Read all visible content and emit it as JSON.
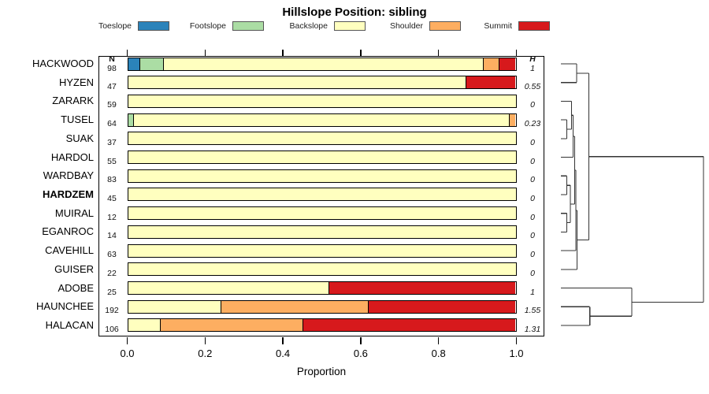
{
  "title": "Hillslope Position: sibling",
  "columns": {
    "n": "N",
    "h": "H"
  },
  "xaxis": {
    "label": "Proportion",
    "tick_labels": [
      "0.0",
      "0.2",
      "0.4",
      "0.6",
      "0.8",
      "1.0"
    ],
    "tick_values": [
      0,
      0.2,
      0.4,
      0.6,
      0.8,
      1.0
    ]
  },
  "legend": [
    {
      "label": "Toeslope",
      "color": "#2b83ba"
    },
    {
      "label": "Footslope",
      "color": "#abdda4"
    },
    {
      "label": "Backslope",
      "color": "#ffffbf"
    },
    {
      "label": "Shoulder",
      "color": "#fdae61"
    },
    {
      "label": "Summit",
      "color": "#d7191c"
    }
  ],
  "chart_data": {
    "type": "bar",
    "subtype": "horizontal-stacked-proportion",
    "title": "Hillslope Position: sibling",
    "xlabel": "Proportion",
    "xlim": [
      0,
      1
    ],
    "grid": false,
    "legend_position": "top",
    "categories": [
      "Toeslope",
      "Footslope",
      "Backslope",
      "Shoulder",
      "Summit"
    ],
    "colors": [
      "#2b83ba",
      "#abdda4",
      "#ffffbf",
      "#fdae61",
      "#d7191c"
    ],
    "rows": [
      {
        "name": "HACKWOOD",
        "n": 98,
        "h": "1",
        "bold": false,
        "values": [
          0.031,
          0.061,
          0.826,
          0.041,
          0.041
        ]
      },
      {
        "name": "HYZEN",
        "n": 47,
        "h": "0.55",
        "bold": false,
        "values": [
          0,
          0,
          0.872,
          0,
          0.128
        ]
      },
      {
        "name": "ZARARK",
        "n": 59,
        "h": "0",
        "bold": false,
        "values": [
          0,
          0,
          1,
          0,
          0
        ]
      },
      {
        "name": "TUSEL",
        "n": 64,
        "h": "0.23",
        "bold": false,
        "values": [
          0,
          0.016,
          0.968,
          0.016,
          0
        ]
      },
      {
        "name": "SUAK",
        "n": 37,
        "h": "0",
        "bold": false,
        "values": [
          0,
          0,
          1,
          0,
          0
        ]
      },
      {
        "name": "HARDOL",
        "n": 55,
        "h": "0",
        "bold": false,
        "values": [
          0,
          0,
          1,
          0,
          0
        ]
      },
      {
        "name": "WARDBAY",
        "n": 83,
        "h": "0",
        "bold": false,
        "values": [
          0,
          0,
          1,
          0,
          0
        ]
      },
      {
        "name": "HARDZEM",
        "n": 45,
        "h": "0",
        "bold": true,
        "values": [
          0,
          0,
          1,
          0,
          0
        ]
      },
      {
        "name": "MUIRAL",
        "n": 12,
        "h": "0",
        "bold": false,
        "values": [
          0,
          0,
          1,
          0,
          0
        ]
      },
      {
        "name": "EGANROC",
        "n": 14,
        "h": "0",
        "bold": false,
        "values": [
          0,
          0,
          1,
          0,
          0
        ]
      },
      {
        "name": "CAVEHILL",
        "n": 63,
        "h": "0",
        "bold": false,
        "values": [
          0,
          0,
          1,
          0,
          0
        ]
      },
      {
        "name": "GUISER",
        "n": 22,
        "h": "0",
        "bold": false,
        "values": [
          0,
          0,
          1,
          0,
          0
        ]
      },
      {
        "name": "ADOBE",
        "n": 25,
        "h": "1",
        "bold": false,
        "values": [
          0,
          0,
          0.52,
          0,
          0.48
        ]
      },
      {
        "name": "HAUNCHEE",
        "n": 192,
        "h": "1.55",
        "bold": false,
        "values": [
          0,
          0,
          0.24,
          0.38,
          0.38
        ]
      },
      {
        "name": "HALACAN",
        "n": 106,
        "h": "1.31",
        "bold": false,
        "values": [
          0,
          0,
          0.085,
          0.368,
          0.547
        ]
      }
    ],
    "dendrogram_segments": [
      [
        712,
        81,
        732,
        81
      ],
      [
        712,
        104.7,
        732,
        104.7
      ],
      [
        712,
        128.4,
        725.5,
        128.4
      ],
      [
        712,
        152.1,
        719.5,
        152.1
      ],
      [
        712,
        175.9,
        719.5,
        175.9
      ],
      [
        712,
        199.6,
        727.5,
        199.6
      ],
      [
        712,
        223.3,
        719.5,
        223.3
      ],
      [
        712,
        247,
        719.5,
        247
      ],
      [
        712,
        270.7,
        719.5,
        270.7
      ],
      [
        712,
        294.4,
        719.5,
        294.4
      ],
      [
        712,
        318.1,
        731,
        318.1
      ],
      [
        712,
        341.9,
        732.5,
        341.9
      ],
      [
        712,
        365.6,
        802,
        365.6
      ],
      [
        712,
        389.3,
        748.7,
        389.3
      ],
      [
        712,
        413,
        748.7,
        413
      ],
      [
        732,
        81,
        732,
        104.7
      ],
      [
        732,
        92.9,
        747.5,
        92.9
      ],
      [
        719.5,
        152.1,
        719.5,
        175.9
      ],
      [
        719.5,
        164,
        725.5,
        164
      ],
      [
        725.5,
        128.4,
        725.5,
        164
      ],
      [
        725.5,
        146.2,
        727.5,
        146.2
      ],
      [
        727.5,
        146.2,
        727.5,
        199.6
      ],
      [
        727.5,
        172.9,
        729.5,
        172.9
      ],
      [
        719.5,
        223.3,
        719.5,
        247
      ],
      [
        719.5,
        235.2,
        724,
        235.2
      ],
      [
        719.5,
        270.7,
        719.5,
        294.4
      ],
      [
        719.5,
        282.6,
        724,
        282.6
      ],
      [
        724,
        235.2,
        724,
        282.6
      ],
      [
        724,
        258.9,
        729.5,
        258.9
      ],
      [
        729.5,
        172.9,
        729.5,
        258.9
      ],
      [
        729.5,
        215.9,
        731,
        215.9
      ],
      [
        731,
        215.9,
        731,
        318.1
      ],
      [
        731,
        267,
        732.5,
        267
      ],
      [
        732.5,
        267,
        732.5,
        341.9
      ],
      [
        732.5,
        304.5,
        747.5,
        304.5
      ],
      [
        747.5,
        92.9,
        747.5,
        304.5
      ],
      [
        747.5,
        198.7,
        893,
        198.7
      ],
      [
        748.7,
        389.3,
        748.7,
        413
      ],
      [
        748.7,
        401.2,
        802,
        401.2
      ],
      [
        802,
        365.6,
        802,
        401.2
      ],
      [
        802,
        383.4,
        893,
        383.4
      ],
      [
        893,
        198.7,
        893,
        383.4
      ]
    ]
  }
}
